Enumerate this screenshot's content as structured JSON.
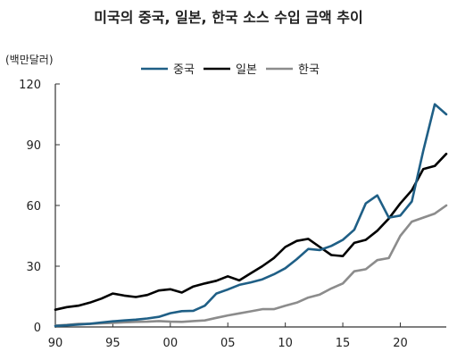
{
  "title": "미국의 중국, 일본, 한국 소스 수입 금액 추이",
  "chart_data": {
    "type": "line",
    "title": "미국의 중국, 일본, 한국 소스 수입 금액 추이",
    "ylabel": "(백만달러)",
    "xlabel": "",
    "xlim": [
      1990,
      2024
    ],
    "ylim": [
      0,
      120
    ],
    "yticks": [
      0,
      30,
      60,
      90,
      120
    ],
    "xticks": [
      1990,
      1995,
      2000,
      2005,
      2010,
      2015,
      2020
    ],
    "xtick_labels": [
      "90",
      "95",
      "00",
      "05",
      "10",
      "15",
      "20"
    ],
    "grid": false,
    "legend_position": "top-right",
    "x": [
      1990,
      1991,
      1992,
      1993,
      1994,
      1995,
      1996,
      1997,
      1998,
      1999,
      2000,
      2001,
      2002,
      2003,
      2004,
      2005,
      2006,
      2007,
      2008,
      2009,
      2010,
      2011,
      2012,
      2013,
      2014,
      2015,
      2016,
      2017,
      2018,
      2019,
      2020,
      2021,
      2022,
      2023,
      2024
    ],
    "series": [
      {
        "name": "중국",
        "color": "#1f5f86",
        "values": [
          0.5,
          0.8,
          1.2,
          1.6,
          2.2,
          2.8,
          3.2,
          3.6,
          4.2,
          5.0,
          6.8,
          7.8,
          8.0,
          10.5,
          16.5,
          18.5,
          20.8,
          22.0,
          23.5,
          26.0,
          29.0,
          33.5,
          38.5,
          38.0,
          40.0,
          43.0,
          48.0,
          61.0,
          65.0,
          54.0,
          55.0,
          62.0,
          87.0,
          110.0,
          105.0
        ]
      },
      {
        "name": "일본",
        "color": "#000000",
        "values": [
          8.5,
          9.8,
          10.5,
          12.0,
          14.0,
          16.5,
          15.5,
          14.8,
          15.8,
          18.0,
          18.6,
          17.0,
          20.0,
          21.5,
          22.8,
          25.0,
          23.0,
          26.5,
          30.0,
          34.0,
          39.5,
          42.5,
          43.5,
          39.5,
          35.5,
          35.0,
          41.5,
          43.0,
          47.5,
          53.5,
          61.0,
          67.5,
          78.0,
          79.5,
          85.5
        ]
      },
      {
        "name": "한국",
        "color": "#8c8c8c",
        "values": [
          0.7,
          1.0,
          1.5,
          1.5,
          1.8,
          2.0,
          2.3,
          2.5,
          2.6,
          2.9,
          2.6,
          2.5,
          2.9,
          3.2,
          4.5,
          5.7,
          6.7,
          7.7,
          8.8,
          8.8,
          10.5,
          12.0,
          14.5,
          16.0,
          19.0,
          21.5,
          27.5,
          28.5,
          33.0,
          34.0,
          45.0,
          52.0,
          54.0,
          56.0,
          60.0
        ]
      }
    ]
  }
}
